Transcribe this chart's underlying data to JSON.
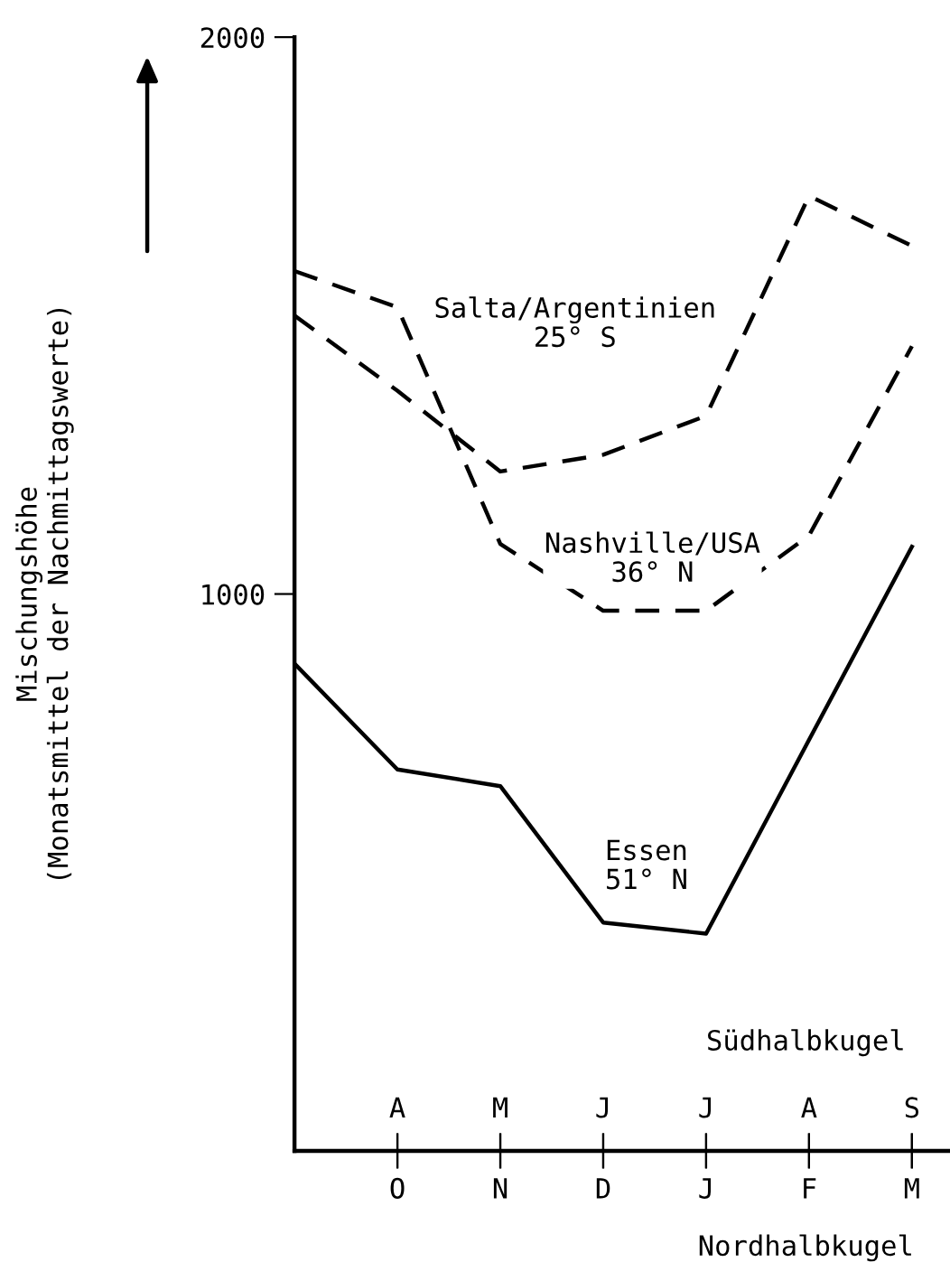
{
  "chart_data": {
    "type": "line",
    "xlabel": "Nordhalbkugel",
    "x2label": "Südhalbkugel",
    "ylabel": "Mischungshöhe\n(Monatsmittel der Nachmittagswerte)",
    "categories": [
      null,
      "O",
      "N",
      "D",
      "J",
      "F",
      "M"
    ],
    "ylim": [
      0,
      2000
    ],
    "yticks": [
      1000,
      2000
    ],
    "grid": false,
    "legend": false,
    "marker": "none",
    "series": [
      {
        "color": "#000000",
        "line_style": "dashed",
        "values": [
          1500,
          1365,
          1220,
          1250,
          1320,
          1715,
          1625
        ]
      },
      {
        "color": "#000000",
        "line_style": "dashed",
        "values": [
          1580,
          1515,
          1090,
          970,
          970,
          1105,
          1445
        ]
      },
      {
        "color": "#000000",
        "line_style": "solid",
        "values": [
          875,
          685,
          655,
          410,
          390,
          738,
          1085
        ]
      }
    ],
    "annotations": [
      "Salta/Argentinien\n25° S",
      "Nashville/USA\n36° N",
      "Essen\n51° N",
      "A",
      "M",
      "J",
      "J",
      "A",
      "S"
    ]
  }
}
